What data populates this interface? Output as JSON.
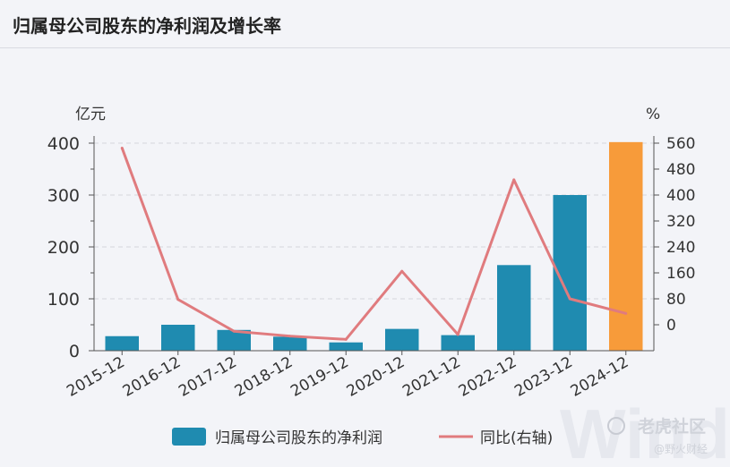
{
  "title": "归属母公司股东的净利润及增长率",
  "chart_data": {
    "type": "bar+line",
    "categories": [
      "2015-12",
      "2016-12",
      "2017-12",
      "2018-12",
      "2019-12",
      "2020-12",
      "2021-12",
      "2022-12",
      "2023-12",
      "2024-12"
    ],
    "series": [
      {
        "name": "归属母公司股东的净利润",
        "type": "bar",
        "axis": "left",
        "values": [
          28,
          50,
          40,
          27,
          16,
          42,
          30,
          165,
          300,
          402
        ],
        "colors": [
          "#1f8bb0",
          "#1f8bb0",
          "#1f8bb0",
          "#1f8bb0",
          "#1f8bb0",
          "#1f8bb0",
          "#1f8bb0",
          "#1f8bb0",
          "#1f8bb0",
          "#f79b3a"
        ]
      },
      {
        "name": "同比(右轴)",
        "type": "line",
        "axis": "right",
        "color": "#e07b7e",
        "values": [
          545,
          78,
          -20,
          -35,
          -45,
          165,
          -30,
          447,
          80,
          35
        ]
      }
    ],
    "y_left": {
      "label": "亿元",
      "ticks": [
        0,
        100,
        200,
        300,
        400
      ],
      "range": [
        0,
        400
      ]
    },
    "y_right": {
      "label": "%",
      "ticks": [
        0,
        80,
        160,
        240,
        320,
        400,
        480,
        560
      ],
      "range": [
        -80,
        560
      ]
    },
    "grid": true,
    "legend_position": "bottom"
  },
  "watermark": {
    "main": "老虎社区",
    "sub": "@野火财经",
    "bg": "Wind"
  }
}
